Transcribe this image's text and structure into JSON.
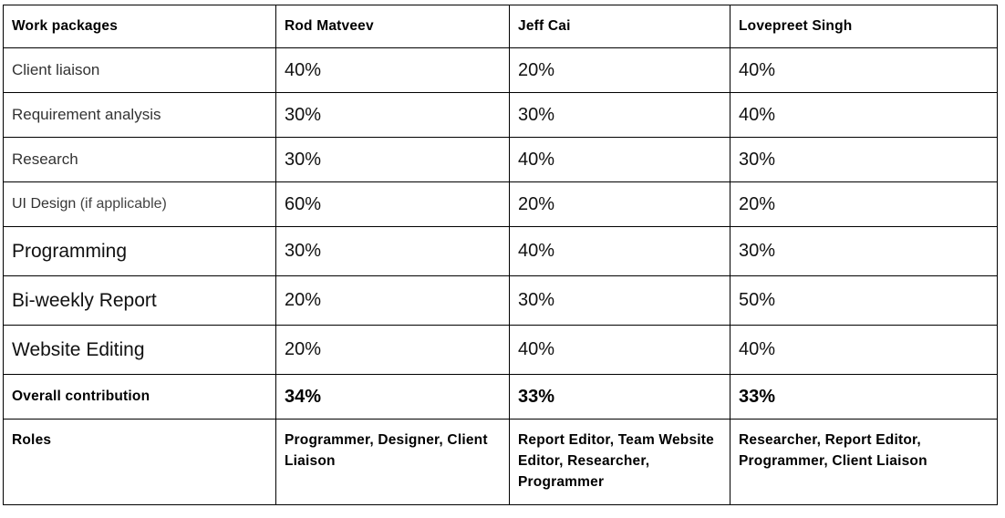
{
  "table": {
    "headers": [
      "Work packages",
      "Rod Matveev",
      "Jeff Cai",
      "Lovepreet Singh"
    ],
    "rows": [
      {
        "label": "Client liaison",
        "values": [
          "40%",
          "20%",
          "40%"
        ]
      },
      {
        "label": "Requirement analysis",
        "values": [
          "30%",
          "30%",
          "40%"
        ]
      },
      {
        "label": "Research",
        "values": [
          "30%",
          "40%",
          "30%"
        ]
      },
      {
        "label": "UI Design",
        "label_suffix": "(if applicable)",
        "values": [
          "60%",
          "20%",
          "20%"
        ]
      },
      {
        "label": "Programming",
        "values": [
          "30%",
          "40%",
          "30%"
        ]
      },
      {
        "label": "Bi-weekly Report",
        "values": [
          "20%",
          "30%",
          "50%"
        ]
      },
      {
        "label": "Website Editing",
        "values": [
          "20%",
          "40%",
          "40%"
        ]
      }
    ],
    "overall": {
      "label": "Overall contribution",
      "values": [
        "34%",
        "33%",
        "33%"
      ]
    },
    "roles": {
      "label": "Roles",
      "values": [
        "Programmer, Designer, Client Liaison",
        "Report Editor, Team Website Editor, Researcher, Programmer",
        "Researcher, Report Editor, Programmer, Client Liaison"
      ]
    }
  }
}
